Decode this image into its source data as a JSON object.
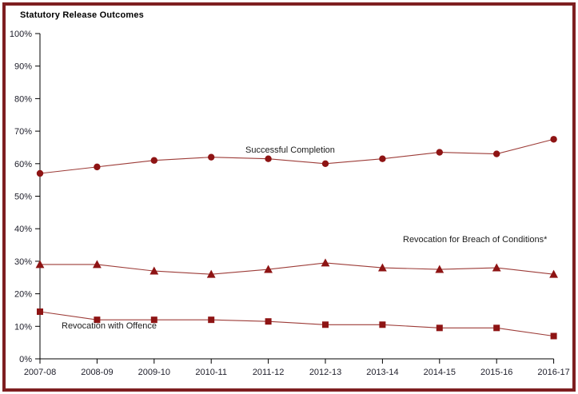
{
  "chart_data": {
    "type": "line",
    "title": "Statutory Release Outcomes",
    "categories": [
      "2007-08",
      "2008-09",
      "2009-10",
      "2010-11",
      "2011-12",
      "2012-13",
      "2013-14",
      "2014-15",
      "2015-16",
      "2016-17"
    ],
    "series": [
      {
        "name": "Successful Completion",
        "marker": "circle",
        "values": [
          57,
          59,
          61,
          62,
          61.5,
          60,
          61.5,
          63.5,
          63,
          67.5
        ]
      },
      {
        "name": "Revocation for Breach of Conditions*",
        "marker": "triangle",
        "values": [
          29,
          29,
          27,
          26,
          27.5,
          29.5,
          28,
          27.5,
          28,
          26
        ]
      },
      {
        "name": "Revocation with Offence",
        "marker": "square",
        "values": [
          14.5,
          12,
          12,
          12,
          11.5,
          10.5,
          10.5,
          9.5,
          9.5,
          7
        ]
      }
    ],
    "xlabel": "",
    "ylabel": "",
    "ylim": [
      0,
      100
    ],
    "y_tick_step": 10,
    "y_tick_suffix": "%",
    "grid": false,
    "legend_position": "inline-labels",
    "colors": {
      "marker": "#8e1414",
      "line": "#9d3c38",
      "frame_border": "#7e1e20",
      "axis": "#000000",
      "tick_text": "#20202c",
      "label_text": "#1c1c1c"
    }
  }
}
